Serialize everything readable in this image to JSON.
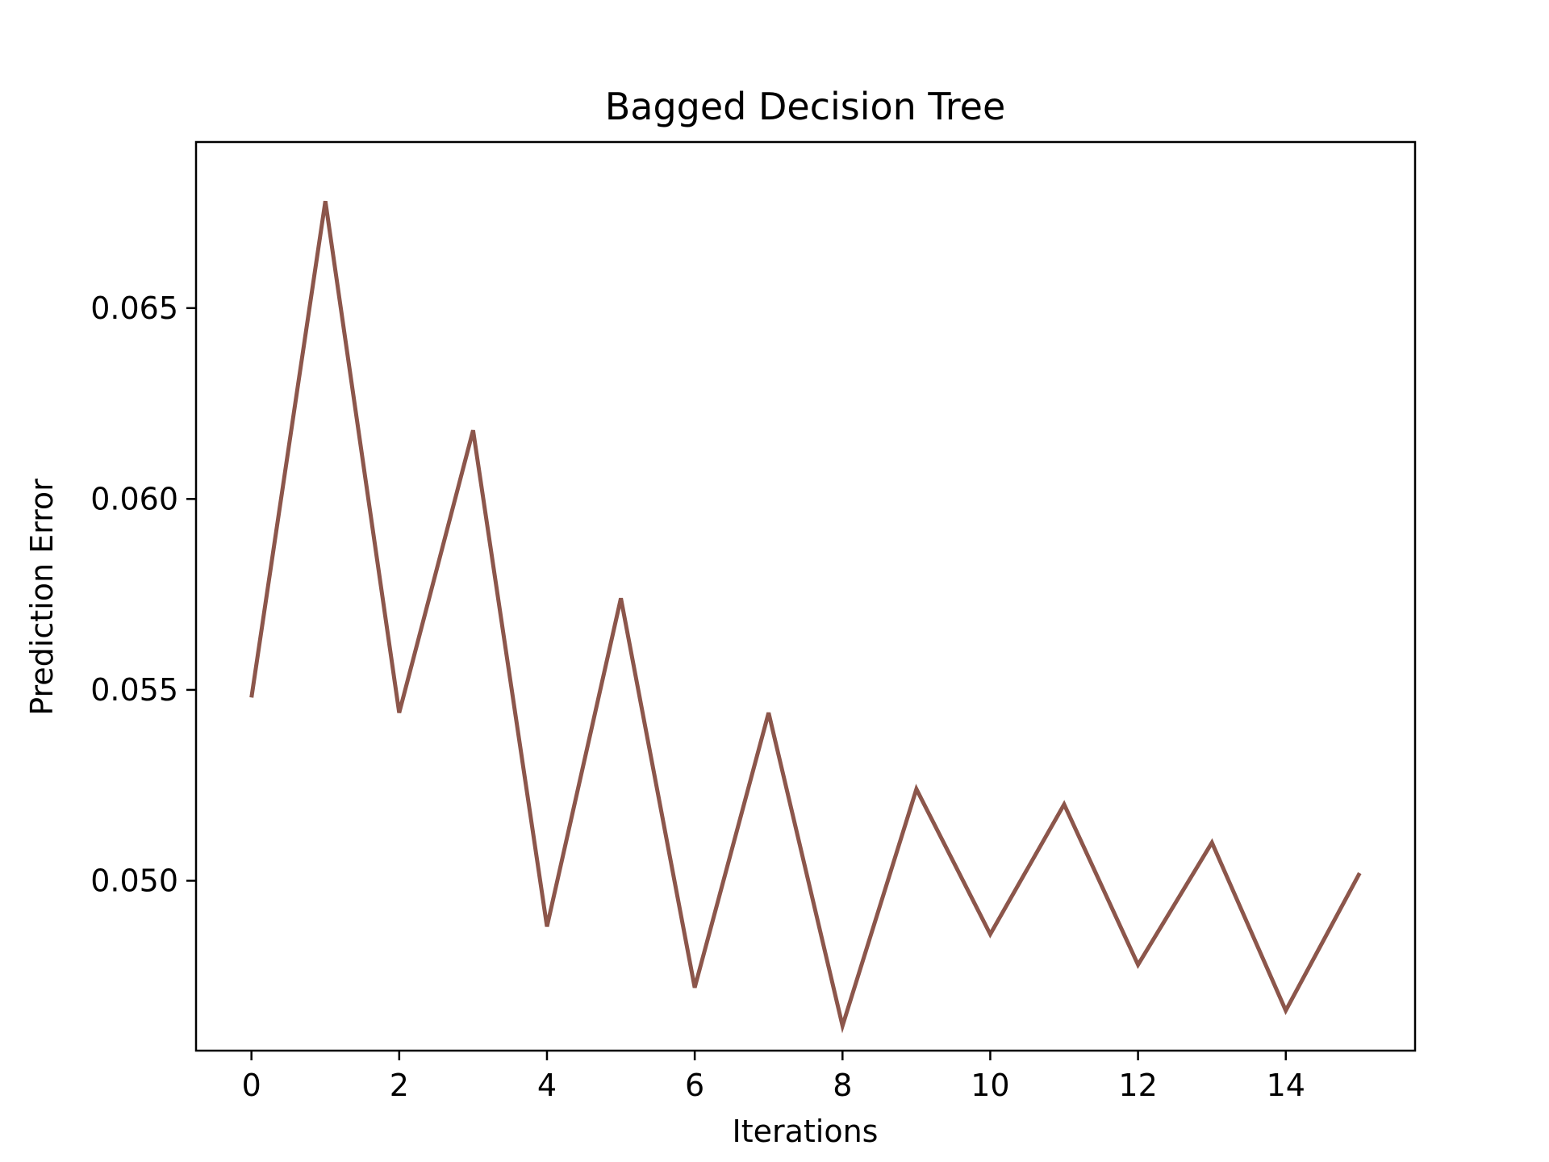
{
  "chart_data": {
    "type": "line",
    "title": "Bagged Decision Tree",
    "xlabel": "Iterations",
    "ylabel": "Prediction Error",
    "x": [
      0,
      1,
      2,
      3,
      4,
      5,
      6,
      7,
      8,
      9,
      10,
      11,
      12,
      13,
      14,
      15
    ],
    "series": [
      {
        "values": [
          0.0548,
          0.0678,
          0.0544,
          0.0618,
          0.0488,
          0.0574,
          0.0472,
          0.0544,
          0.0462,
          0.0524,
          0.0486,
          0.052,
          0.0478,
          0.051,
          0.0466,
          0.0502
        ],
        "color": "#8c564b"
      }
    ],
    "xlim": [
      -0.75,
      15.75
    ],
    "ylim": [
      0.04555,
      0.06935
    ],
    "xticks": [
      0,
      2,
      4,
      6,
      8,
      10,
      12,
      14
    ],
    "xtick_labels": [
      "0",
      "2",
      "4",
      "6",
      "8",
      "10",
      "12",
      "14"
    ],
    "yticks": [
      0.05,
      0.055,
      0.06,
      0.065
    ],
    "ytick_labels": [
      "0.050",
      "0.055",
      "0.060",
      "0.065"
    ],
    "grid": false,
    "legend": false
  }
}
